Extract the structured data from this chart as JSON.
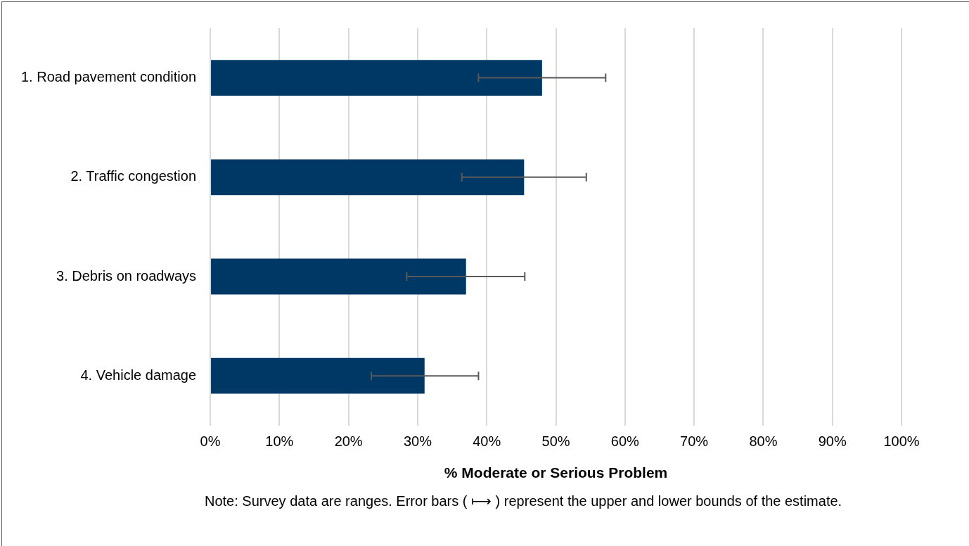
{
  "chart_data": {
    "type": "bar",
    "orientation": "horizontal",
    "xlabel": "% Moderate or Serious Problem",
    "categories": [
      "1. Road pavement condition",
      "2. Traffic congestion",
      "3. Debris on roadways",
      "4. Vehicle damage"
    ],
    "values": [
      48,
      45.4,
      37,
      31
    ],
    "color": "#003865",
    "errors": [
      [
        38.8,
        57.2
      ],
      [
        36.4,
        54.4
      ],
      [
        28.4,
        45.5
      ],
      [
        23.3,
        38.8
      ]
    ],
    "xlim": [
      0,
      100
    ],
    "xticks": [
      {
        "value": 0,
        "label": "0%"
      },
      {
        "value": 10,
        "label": "10%"
      },
      {
        "value": 20,
        "label": "20%"
      },
      {
        "value": 30,
        "label": "30%"
      },
      {
        "value": 40,
        "label": "40%"
      },
      {
        "value": 50,
        "label": "50%"
      },
      {
        "value": 60,
        "label": "60%"
      },
      {
        "value": 70,
        "label": "70%"
      },
      {
        "value": 80,
        "label": "80%"
      },
      {
        "value": 90,
        "label": "90%"
      },
      {
        "value": 100,
        "label": "100%"
      }
    ],
    "grid": "x",
    "annotations": [
      "Note: Survey data are ranges. Error bars ( ⟼ ) represent the upper and lower bounds of the estimate."
    ]
  }
}
